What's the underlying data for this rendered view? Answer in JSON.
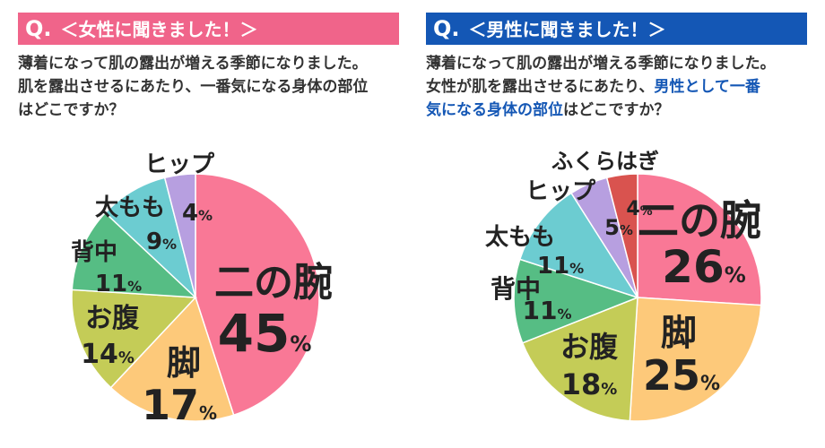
{
  "panels": [
    {
      "header": "＜女性に聞きました！＞",
      "q_mark": "Q.",
      "question": [
        "薄着になって肌の露出が増える季節になりました。",
        "肌を露出させるにあたり、一番気になる身体の部位",
        "はどこですか？"
      ],
      "header_color": "#f0648a"
    },
    {
      "header": "＜男性に聞きました！＞",
      "q_mark": "Q.",
      "question_line1": "薄着になって肌の露出が増える季節になりました。",
      "question_line2_pre": "女性が肌を露出させるにあたり、",
      "question_line2_hl": "男性として一番",
      "question_line3_hl": "気になる身体の部位",
      "question_line3_post": "はどこですか？",
      "header_color": "#1457b5"
    }
  ],
  "chart_data": [
    {
      "type": "pie",
      "unit": "%",
      "slices": [
        {
          "label": "二の腕",
          "value": 45,
          "color": "#f97896"
        },
        {
          "label": "脚",
          "value": 17,
          "color": "#fdc97a"
        },
        {
          "label": "お腹",
          "value": 14,
          "color": "#c4cc57"
        },
        {
          "label": "背中",
          "value": 11,
          "color": "#56bd84"
        },
        {
          "label": "太もも",
          "value": 9,
          "color": "#6cccd1"
        },
        {
          "label": "ヒップ",
          "value": 4,
          "color": "#b79fe0"
        }
      ]
    },
    {
      "type": "pie",
      "unit": "%",
      "slices": [
        {
          "label": "二の腕",
          "value": 26,
          "color": "#f97896"
        },
        {
          "label": "脚",
          "value": 25,
          "color": "#fdc97a"
        },
        {
          "label": "お腹",
          "value": 18,
          "color": "#c4cc57"
        },
        {
          "label": "背中",
          "value": 11,
          "color": "#56bd84"
        },
        {
          "label": "太もも",
          "value": 11,
          "color": "#6cccd1"
        },
        {
          "label": "ヒップ",
          "value": 5,
          "color": "#b79fe0"
        },
        {
          "label": "ふくらはぎ",
          "value": 4,
          "color": "#d9534f"
        }
      ]
    }
  ]
}
